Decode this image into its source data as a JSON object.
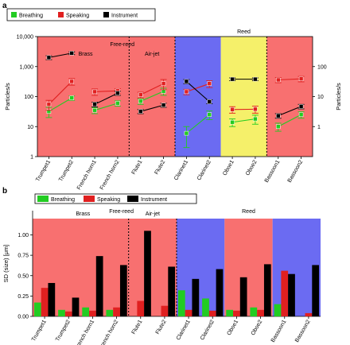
{
  "colors": {
    "brass_bg": "#f87070",
    "airjet_bg": "#f87070",
    "clarinet_bg": "#6b6bf2",
    "oboe_bg": "#f5f06a",
    "bassoon_bg": "#f87070",
    "breathing": "#22cc22",
    "speaking": "#e02020",
    "instrument": "#000000"
  },
  "chart_data": [
    {
      "panel": "a",
      "type": "line",
      "ylabel": "Particles/s",
      "ylabel_right": "Particles/s",
      "yscale": "log",
      "ylim": [
        1,
        10000
      ],
      "right_ylim": [
        0.1,
        1000
      ],
      "yticks": [
        "1",
        "10",
        "100",
        "1,000",
        "10,000"
      ],
      "right_yticks": [
        "1",
        "10",
        "100"
      ],
      "categories": [
        "Trumpet1",
        "Trumpet2",
        "French horn1",
        "French horn2",
        "Flute1",
        "Flute2",
        "Clarinet1",
        "Clarinet2",
        "Oboe1",
        "Oboe2",
        "Bassoon1",
        "Bassoon2"
      ],
      "groups": [
        {
          "name": "Brass",
          "label": "Brass",
          "members": [
            0,
            1,
            2,
            3
          ],
          "bg": "brass_bg"
        },
        {
          "name": "Air-jet",
          "label": "Air-jet",
          "members": [
            4,
            5
          ],
          "bg": "airjet_bg"
        },
        {
          "name": "Clarinet",
          "label": "",
          "members": [
            6,
            7
          ],
          "bg": "clarinet_bg"
        },
        {
          "name": "Oboe",
          "label": "",
          "members": [
            8,
            9
          ],
          "bg": "oboe_bg"
        },
        {
          "name": "Bassoon",
          "label": "",
          "members": [
            10,
            11
          ],
          "bg": "bassoon_bg"
        }
      ],
      "annotations": [
        "Free-reed",
        "Reed"
      ],
      "legend": [
        "Breathing",
        "Speaking",
        "Instrument"
      ],
      "legend_position": "top-left",
      "series": [
        {
          "name": "Breathing",
          "color": "breathing",
          "values": [
            32,
            90,
            35,
            60,
            70,
            150,
            6,
            25,
            14,
            18,
            10,
            25
          ],
          "err": [
            12,
            15,
            8,
            12,
            15,
            40,
            4,
            8,
            4,
            6,
            3,
            6
          ]
        },
        {
          "name": "Speaking",
          "color": "speaking",
          "values": [
            55,
            320,
            145,
            155,
            115,
            270,
            145,
            270,
            37,
            38,
            360,
            390
          ],
          "err": [
            20,
            80,
            35,
            30,
            25,
            100,
            30,
            70,
            9,
            10,
            70,
            80
          ]
        },
        {
          "name": "Instrument",
          "color": "instrument",
          "values": [
            2000,
            2800,
            55,
            130,
            32,
            52,
            320,
            68,
            380,
            380,
            23,
            47
          ],
          "err": [
            300,
            300,
            10,
            20,
            5,
            8,
            50,
            10,
            40,
            40,
            4,
            8
          ]
        }
      ],
      "connect_pairs": [
        [
          0,
          1
        ],
        [
          2,
          3
        ],
        [
          4,
          5
        ],
        [
          6,
          7
        ],
        [
          8,
          9
        ],
        [
          10,
          11
        ]
      ]
    },
    {
      "panel": "b",
      "type": "bar",
      "ylabel": "SD (size) [μm]",
      "ylim": [
        0,
        1.2
      ],
      "yticks": [
        "0.00",
        "0.25",
        "0.50",
        "0.75",
        "1.00"
      ],
      "categories": [
        "Trumpet1",
        "Trumpet2",
        "French horn1",
        "French horn2",
        "Flute1",
        "Flute2",
        "Clarinet1",
        "Clarinet2",
        "Oboe1",
        "Oboe2",
        "Bassoon1",
        "Bassoon2"
      ],
      "groups": [
        {
          "name": "Brass",
          "label": "Brass",
          "members": [
            0,
            1,
            2,
            3
          ],
          "bg": "brass_bg"
        },
        {
          "name": "Air-jet",
          "label": "Air-jet",
          "members": [
            4,
            5
          ],
          "bg": "airjet_bg"
        },
        {
          "name": "Clarinet",
          "label": "",
          "members": [
            6,
            7
          ],
          "bg": "clarinet_bg"
        },
        {
          "name": "Oboe",
          "label": "",
          "members": [
            8,
            9
          ],
          "bg": "bassoon_bg"
        },
        {
          "name": "Bassoon",
          "label": "",
          "members": [
            10,
            11
          ],
          "bg": "clarinet_bg"
        }
      ],
      "annotations": [
        "Free-reed",
        "Reed"
      ],
      "legend": [
        "Breathing",
        "Speaking",
        "Instrument"
      ],
      "legend_position": "top-left",
      "series": [
        {
          "name": "Breathing",
          "color": "breathing",
          "values": [
            0.17,
            0.08,
            0.11,
            0.08,
            0.0,
            0.0,
            0.32,
            0.22,
            0.08,
            0.11,
            0.15,
            0.0
          ]
        },
        {
          "name": "Speaking",
          "color": "speaking",
          "values": [
            0.35,
            0.06,
            0.07,
            0.11,
            0.19,
            0.13,
            0.08,
            0.07,
            0.07,
            0.08,
            0.56,
            0.04
          ]
        },
        {
          "name": "Instrument",
          "color": "instrument",
          "values": [
            0.41,
            0.23,
            0.74,
            0.63,
            1.05,
            0.61,
            0.46,
            0.58,
            0.48,
            0.64,
            0.52,
            0.63
          ]
        }
      ]
    }
  ]
}
